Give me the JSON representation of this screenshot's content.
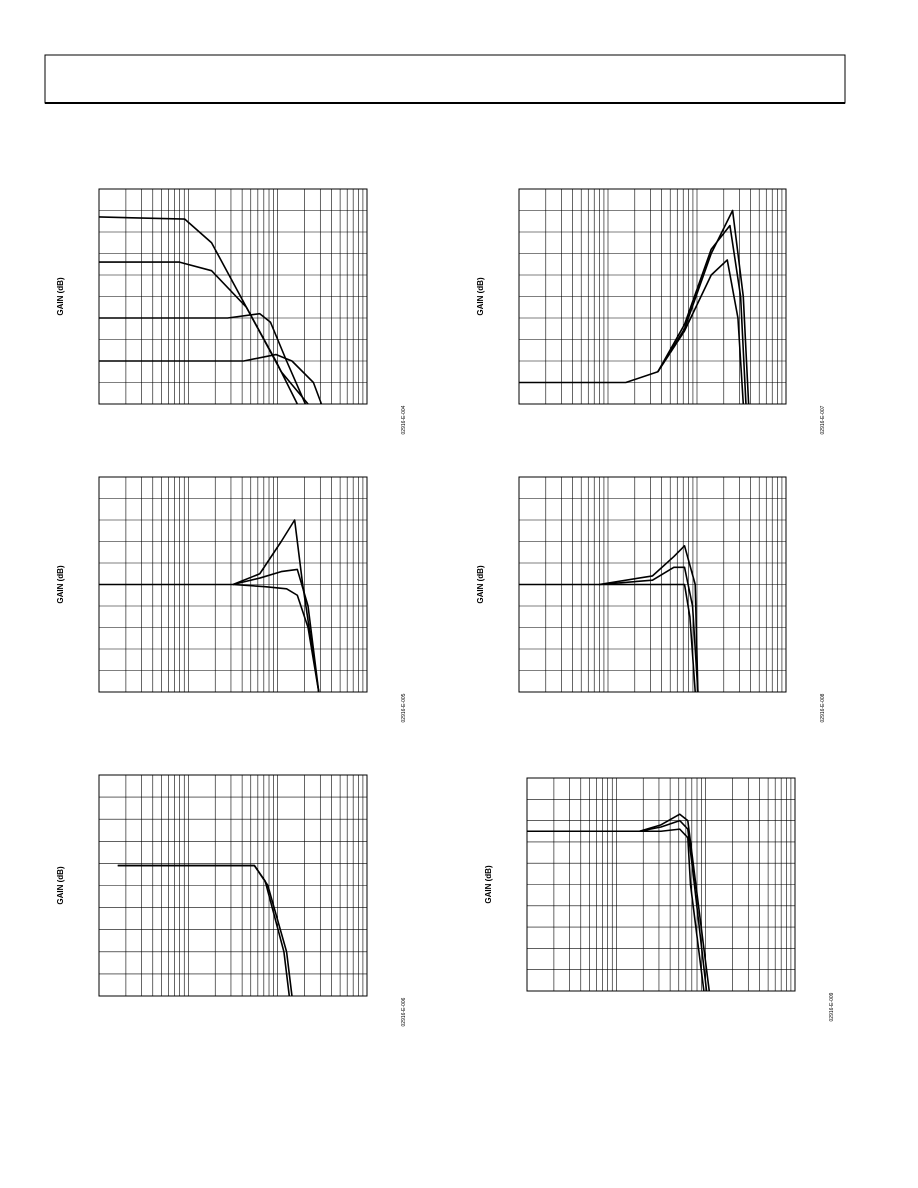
{
  "figures": [
    {
      "y_axis_label": "GAIN (dB)",
      "figure_id": "02916-E-004"
    },
    {
      "y_axis_label": "GAIN (dB)",
      "figure_id": "02916-E-007"
    },
    {
      "y_axis_label": "GAIN (dB)",
      "figure_id": "02916-E-005"
    },
    {
      "y_axis_label": "GAIN (dB)",
      "figure_id": "02916-E-008"
    },
    {
      "y_axis_label": "GAIN (dB)",
      "figure_id": "02916-E-006"
    },
    {
      "y_axis_label": "GAIN (dB)",
      "figure_id": "02916-E-009"
    }
  ]
}
